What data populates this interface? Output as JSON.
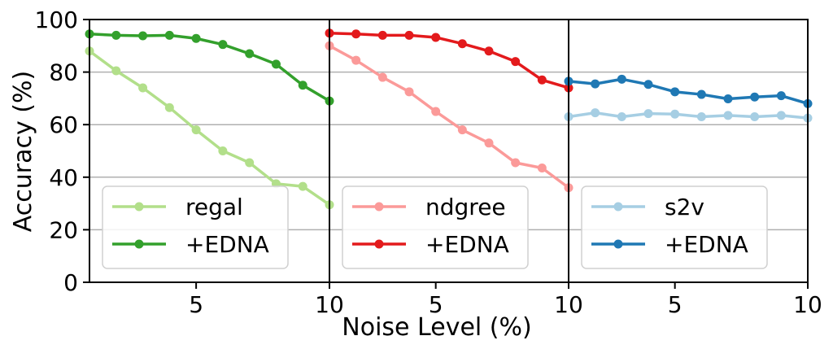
{
  "chart_data": {
    "type": "line",
    "ylabel": "Accuracy (%)",
    "xlabel": "Noise Level (%)",
    "ylim": [
      0,
      100
    ],
    "yticks": [
      0,
      20,
      40,
      60,
      80,
      100
    ],
    "grid": "horizontal",
    "legend_position": "lower-left",
    "panels": [
      {
        "xlim": [
          1,
          10
        ],
        "xticks": [
          5,
          10
        ],
        "x": [
          1,
          2,
          3,
          4,
          5,
          6,
          7,
          8,
          9,
          10
        ],
        "series": [
          {
            "name": "regal",
            "color": "#b2df8a",
            "values": [
              88,
              80.5,
              74,
              66.5,
              58,
              50,
              45.5,
              37.5,
              36.5,
              29.5
            ]
          },
          {
            "name": "+EDNA",
            "color": "#33a02c",
            "values": [
              94.5,
              94,
              93.8,
              94,
              92.8,
              90.5,
              87,
              83,
              75,
              69
            ]
          }
        ]
      },
      {
        "xlim": [
          1,
          10
        ],
        "xticks": [
          5,
          10
        ],
        "x": [
          1,
          2,
          3,
          4,
          5,
          6,
          7,
          8,
          9,
          10
        ],
        "series": [
          {
            "name": "ndgree",
            "color": "#fb9a99",
            "values": [
              90,
              84.5,
              78,
              72.5,
              65,
              58,
              53,
              45.5,
              43.5,
              36
            ]
          },
          {
            "name": "+EDNA",
            "color": "#e31a1c",
            "values": [
              94.8,
              94.5,
              94,
              94,
              93.2,
              90.8,
              88,
              84,
              77,
              74
            ]
          }
        ]
      },
      {
        "xlim": [
          1,
          10
        ],
        "xticks": [
          5,
          10
        ],
        "x": [
          1,
          2,
          3,
          4,
          5,
          6,
          7,
          8,
          9,
          10
        ],
        "series": [
          {
            "name": "s2v",
            "color": "#a6cee3",
            "values": [
              63,
              64.5,
              63,
              64.2,
              64,
              63,
              63.5,
              63,
              63.5,
              62.5
            ]
          },
          {
            "name": "+EDNA",
            "color": "#1f78b4",
            "values": [
              76.5,
              75.5,
              77.3,
              75.3,
              72.5,
              71.5,
              69.8,
              70.5,
              71,
              68
            ]
          }
        ]
      }
    ]
  }
}
